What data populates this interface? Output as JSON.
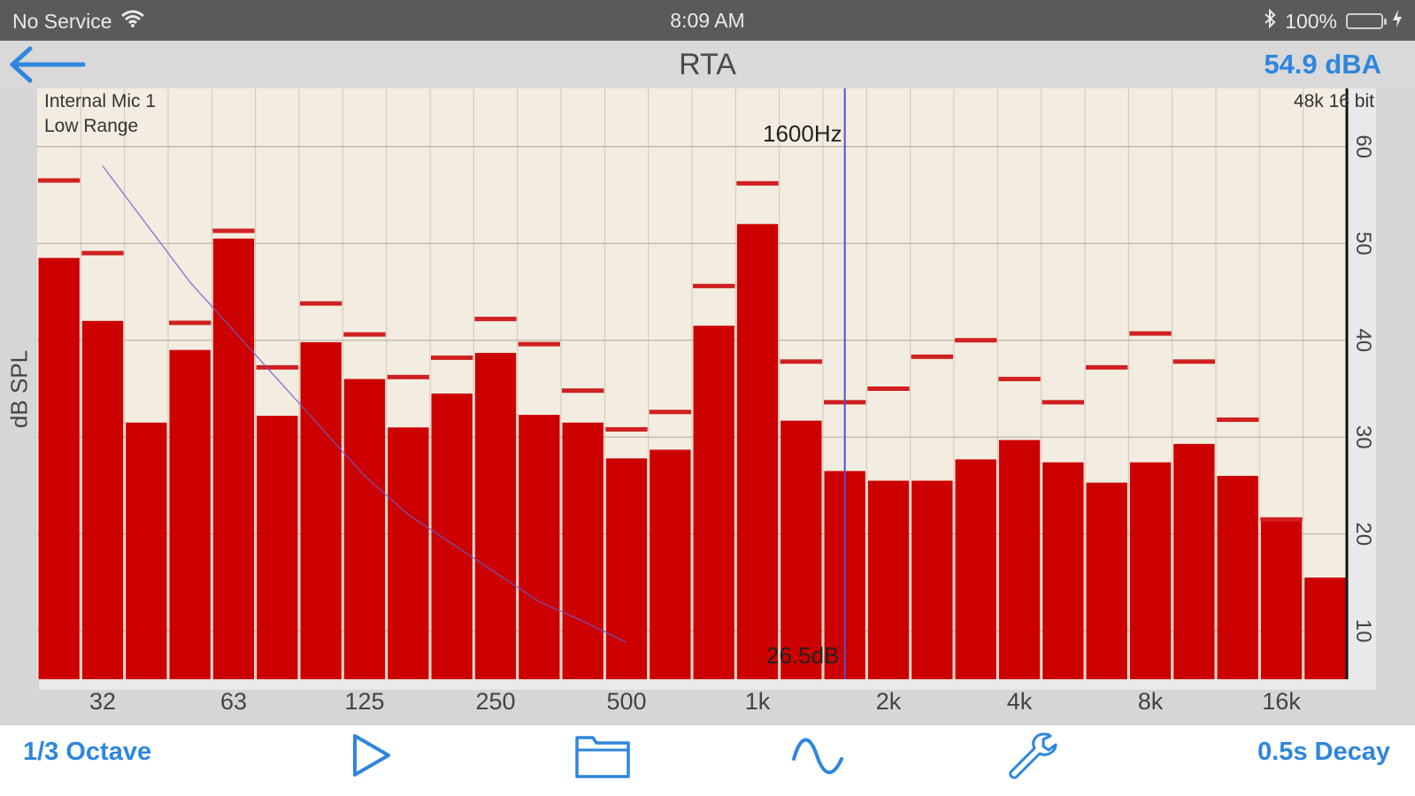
{
  "status_bar": {
    "carrier": "No Service",
    "time": "8:09 AM",
    "battery": "100%"
  },
  "nav": {
    "title": "RTA",
    "level": "54.9 dBA"
  },
  "overlay": {
    "input": "Internal Mic 1",
    "range": "Low Range",
    "format": "48k 16 bit",
    "cursor_freq": "1600Hz",
    "cursor_level": "26.5dB"
  },
  "toolbar": {
    "octave": "1/3 Octave",
    "decay": "0.5s Decay"
  },
  "colors": {
    "accent": "#2e86de",
    "bar": "#cc0000",
    "peak": "#d02020",
    "plot_bg": "#f3ede1",
    "cursor": "#5050d0"
  },
  "icons": [
    "back-arrow-icon",
    "wifi-icon",
    "bluetooth-icon",
    "battery-icon",
    "charging-icon",
    "play-icon",
    "folder-icon",
    "weighting-curve-icon",
    "wrench-icon"
  ],
  "chart_data": {
    "type": "bar",
    "title": "",
    "xlabel": "",
    "ylabel": "dB SPL",
    "ylim": [
      5,
      66
    ],
    "yticks": [
      10,
      20,
      30,
      40,
      50,
      60
    ],
    "xtick_labels": [
      "32",
      "63",
      "125",
      "250",
      "500",
      "1k",
      "2k",
      "4k",
      "8k",
      "16k"
    ],
    "xtick_band_index": [
      1,
      4,
      7,
      10,
      13,
      16,
      19,
      22,
      25,
      28
    ],
    "cursor_band_index": 18,
    "grid": true,
    "series": [
      {
        "name": "",
        "values": [
          48.5,
          42,
          31.5,
          39,
          50.5,
          32.2,
          39.8,
          36,
          31,
          34.5,
          38.7,
          32.3,
          31.5,
          27.8,
          28.7,
          41.5,
          52,
          31.7,
          26.5,
          25.5,
          25.5,
          27.7,
          29.7,
          27.4,
          25.3,
          27.4,
          29.3,
          26,
          21.5,
          15.5
        ]
      },
      {
        "name": "",
        "values": [
          56.5,
          49,
          null,
          41.8,
          51.3,
          37.2,
          43.8,
          40.6,
          36.2,
          38.2,
          42.2,
          39.6,
          34.8,
          30.8,
          32.6,
          45.6,
          56.2,
          37.8,
          33.6,
          35,
          38.3,
          40,
          36,
          33.6,
          37.2,
          40.7,
          37.8,
          31.8,
          21.5,
          null
        ]
      }
    ],
    "weighting_curve": {
      "x_band": [
        1,
        2,
        3,
        4,
        5,
        6,
        7,
        8,
        9,
        10,
        11,
        12,
        13
      ],
      "y_db": [
        58,
        52,
        46,
        41,
        36,
        31,
        26,
        22,
        19,
        16,
        13,
        11,
        8.8
      ]
    }
  }
}
